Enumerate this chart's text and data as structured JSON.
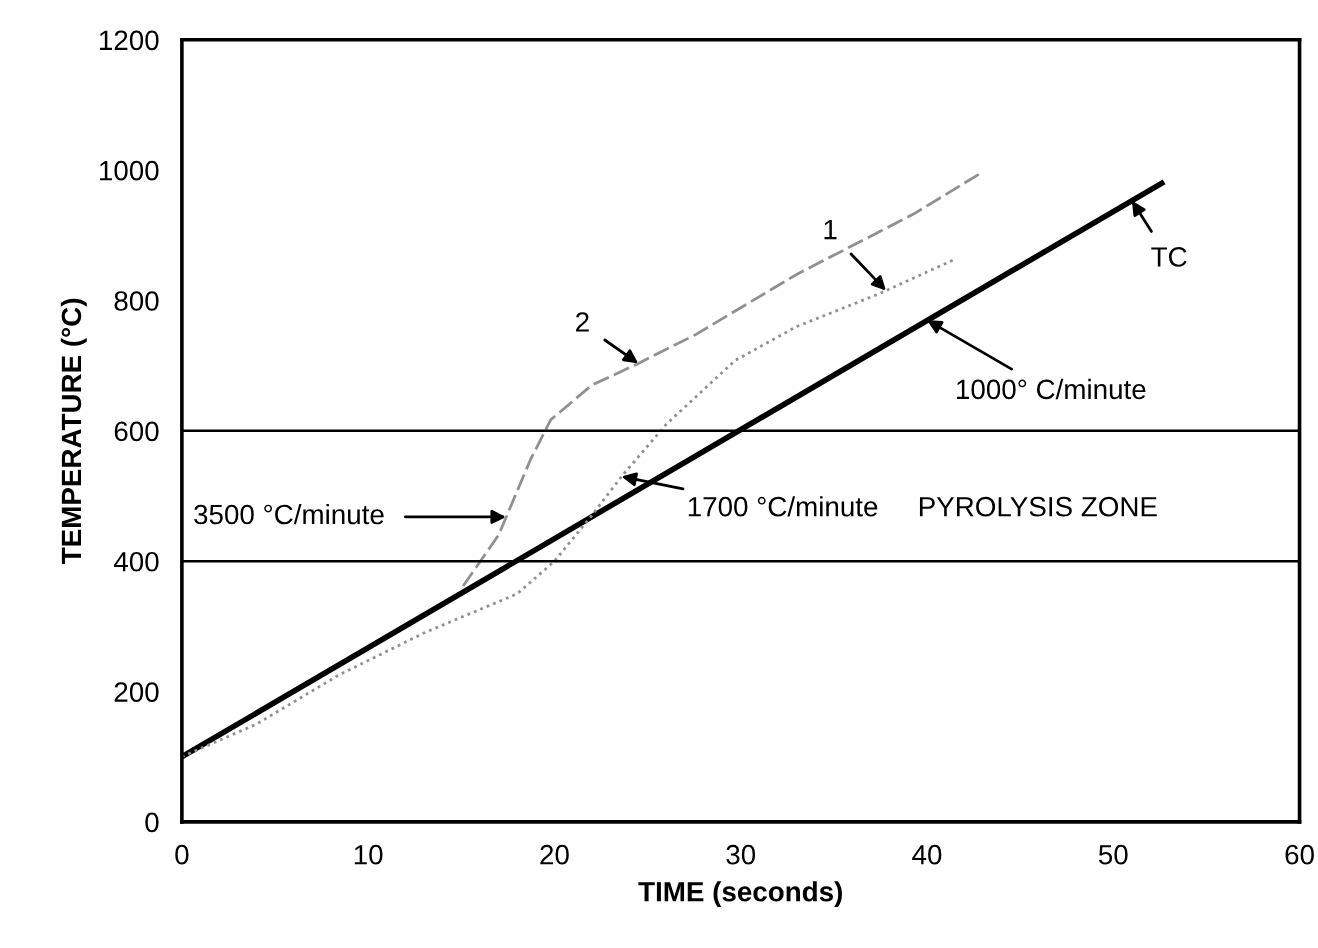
{
  "chart_data": {
    "type": "line",
    "xlabel": "TIME (seconds)",
    "ylabel": "TEMPERATURE (°C)",
    "xlim": [
      0,
      60
    ],
    "ylim": [
      0,
      1200
    ],
    "xticks": [
      0,
      10,
      20,
      30,
      40,
      50,
      60
    ],
    "yticks": [
      0,
      200,
      400,
      600,
      800,
      1000,
      1200
    ],
    "grid": false,
    "series": [
      {
        "name": "TC",
        "color": "#000000",
        "line_style": "solid",
        "x": [
          0,
          52.6
        ],
        "values": [
          100,
          980
        ]
      },
      {
        "name": "1",
        "color": "#909090",
        "line_style": "dotted",
        "x": [
          0,
          4,
          8.4,
          13,
          18,
          20,
          22,
          23.6,
          26,
          29.7,
          33,
          37.4,
          41.4
        ],
        "values": [
          100,
          150,
          225,
          290,
          350,
          400,
          470,
          530,
          610,
          708,
          760,
          810,
          862
        ]
      },
      {
        "name": "2",
        "color": "#909090",
        "line_style": "dashed",
        "x": [
          15.1,
          17,
          18.7,
          19.8,
          22,
          24.4,
          27.6,
          33,
          39.3,
          42.8
        ],
        "values": [
          362,
          440,
          555,
          617,
          670,
          702,
          748,
          840,
          933,
          994
        ]
      }
    ],
    "ref_lines": [
      {
        "axis": "y",
        "value": 600,
        "color": "#000000"
      },
      {
        "axis": "y",
        "value": 400,
        "color": "#000000"
      }
    ],
    "annotations": [
      {
        "text": "1000° C/minute",
        "x": 40,
        "y": 770
      },
      {
        "text": "1700 °C/minute",
        "x": 23.6,
        "y": 530
      },
      "3500 °C/minute",
      "PYROLYSIS ZONE"
    ]
  }
}
